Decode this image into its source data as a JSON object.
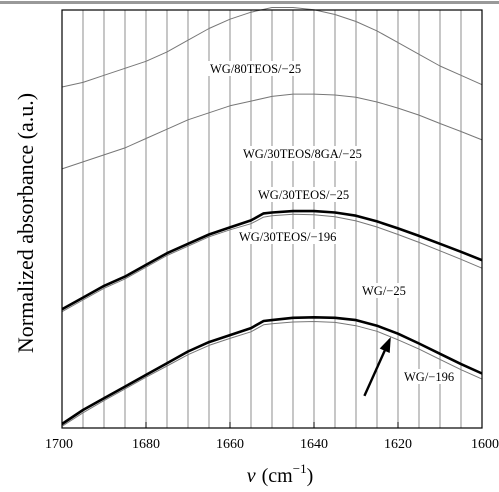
{
  "chart_data": {
    "type": "line",
    "xlabel_symbol": "v",
    "xlabel_unit": "(cm",
    "xlabel_exp": "−1",
    "xlabel_close": ")",
    "ylabel": "Normalized absorbance (a.u.)",
    "xlim": [
      1700,
      1600
    ],
    "x_reversed": true,
    "grid": "vertical",
    "x_ticks": [
      1700,
      1680,
      1660,
      1640,
      1620,
      1600
    ],
    "x_grid_step": 5,
    "series": [
      {
        "name": "WG/80TEOS/−25",
        "color": "#777777",
        "weight": "thin",
        "x": [
          1700,
          1695,
          1690,
          1685,
          1680,
          1675,
          1670,
          1665,
          1660,
          1655,
          1650,
          1645,
          1640,
          1635,
          1630,
          1625,
          1620,
          1615,
          1610,
          1605,
          1600
        ],
        "y": [
          0.72,
          0.73,
          0.745,
          0.76,
          0.775,
          0.795,
          0.82,
          0.845,
          0.865,
          0.88,
          0.89,
          0.89,
          0.885,
          0.875,
          0.86,
          0.84,
          0.815,
          0.79,
          0.765,
          0.745,
          0.725
        ]
      },
      {
        "name": "WG/30TEOS/8GA/−25",
        "color": "#777777",
        "weight": "thin",
        "x": [
          1700,
          1695,
          1690,
          1685,
          1680,
          1675,
          1670,
          1665,
          1660,
          1655,
          1650,
          1645,
          1640,
          1635,
          1630,
          1625,
          1620,
          1615,
          1610,
          1605,
          1600
        ],
        "y": [
          0.545,
          0.56,
          0.575,
          0.59,
          0.61,
          0.63,
          0.65,
          0.665,
          0.68,
          0.69,
          0.7,
          0.705,
          0.705,
          0.703,
          0.698,
          0.688,
          0.675,
          0.66,
          0.642,
          0.625,
          0.607
        ]
      },
      {
        "name": "WG/30TEOS/−25",
        "color": "#000000",
        "weight": "bold",
        "x": [
          1700,
          1695,
          1690,
          1685,
          1680,
          1675,
          1670,
          1665,
          1660,
          1655,
          1652,
          1650,
          1645,
          1640,
          1635,
          1630,
          1625,
          1620,
          1615,
          1610,
          1605,
          1600
        ],
        "y": [
          0.245,
          0.27,
          0.295,
          0.315,
          0.34,
          0.365,
          0.385,
          0.405,
          0.42,
          0.435,
          0.45,
          0.452,
          0.455,
          0.455,
          0.452,
          0.445,
          0.433,
          0.418,
          0.402,
          0.385,
          0.368,
          0.35
        ]
      },
      {
        "name": "WG/30TEOS/−196",
        "color": "#777777",
        "weight": "thin",
        "x": [
          1700,
          1695,
          1690,
          1685,
          1680,
          1675,
          1670,
          1665,
          1660,
          1655,
          1652,
          1650,
          1645,
          1640,
          1635,
          1630,
          1625,
          1620,
          1615,
          1610,
          1605,
          1600
        ],
        "y": [
          0.24,
          0.265,
          0.29,
          0.31,
          0.335,
          0.36,
          0.38,
          0.4,
          0.415,
          0.428,
          0.442,
          0.445,
          0.448,
          0.447,
          0.443,
          0.434,
          0.421,
          0.405,
          0.388,
          0.37,
          0.352,
          0.333
        ]
      },
      {
        "name": "WG/−25",
        "color": "#000000",
        "weight": "bold",
        "x": [
          1700,
          1695,
          1690,
          1685,
          1680,
          1675,
          1670,
          1665,
          1660,
          1655,
          1652,
          1650,
          1645,
          1640,
          1635,
          1630,
          1625,
          1620,
          1615,
          1610,
          1605,
          1600
        ],
        "y": [
          0.0,
          0.03,
          0.055,
          0.08,
          0.105,
          0.13,
          0.155,
          0.175,
          0.19,
          0.205,
          0.22,
          0.222,
          0.227,
          0.228,
          0.227,
          0.222,
          0.21,
          0.193,
          0.172,
          0.15,
          0.128,
          0.108
        ]
      },
      {
        "name": "WG/−196",
        "color": "#777777",
        "weight": "thin",
        "x": [
          1700,
          1695,
          1690,
          1685,
          1680,
          1675,
          1670,
          1665,
          1660,
          1655,
          1652,
          1650,
          1645,
          1640,
          1635,
          1630,
          1625,
          1620,
          1615,
          1610,
          1605,
          1600
        ],
        "y": [
          -0.005,
          0.024,
          0.05,
          0.075,
          0.1,
          0.124,
          0.148,
          0.168,
          0.183,
          0.197,
          0.212,
          0.214,
          0.218,
          0.219,
          0.217,
          0.21,
          0.198,
          0.18,
          0.16,
          0.138,
          0.116,
          0.096
        ]
      }
    ],
    "annotations": [
      {
        "text": "WG/80TEOS/−25",
        "series": 0
      },
      {
        "text": "WG/30TEOS/8GA/−25",
        "series": 1
      },
      {
        "text": "WG/30TEOS/−25",
        "series": 2
      },
      {
        "text": "WG/30TEOS/−196",
        "series": 3
      },
      {
        "text": "WG/−25",
        "series": 4
      },
      {
        "text": "WG/−196",
        "series": 5
      }
    ],
    "arrow": {
      "from_x": 1628,
      "from_y": 0.06,
      "to_x": 1622,
      "to_y": 0.18
    }
  }
}
